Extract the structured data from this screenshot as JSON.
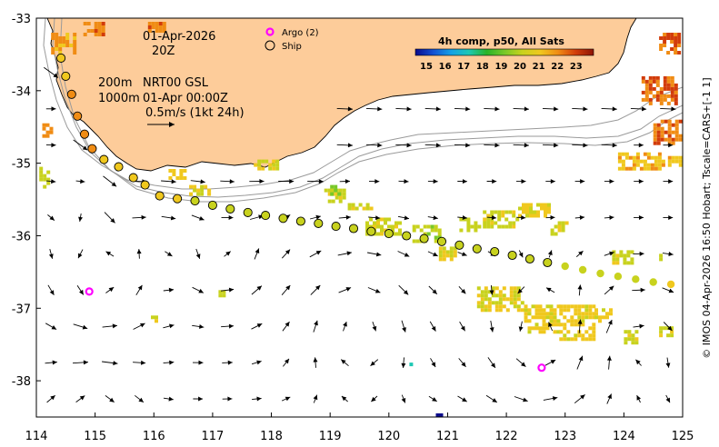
{
  "annotations": {
    "date": "01-Apr-2026",
    "hour": "20Z",
    "depth_a": "200m",
    "depth_b": "1000m",
    "product": "NRT00 GSL",
    "valid_time": "01-Apr 00:00Z",
    "scale_label": "0.5m/s (1kt 24h)"
  },
  "legend": {
    "argo_label": "Argo (2)",
    "ship_label": "Ship"
  },
  "colorbar": {
    "title": "4h comp, p50, All Sats",
    "ticks": [
      "15",
      "16",
      "17",
      "18",
      "19",
      "20",
      "21",
      "22",
      "23"
    ],
    "colors": [
      "#0a0a8c",
      "#1450d2",
      "#14a0e6",
      "#1ec8b4",
      "#28b428",
      "#78c828",
      "#c8d21e",
      "#f0c81e",
      "#f08c14",
      "#d23c0a",
      "#8c1405"
    ]
  },
  "axes": {
    "x_ticks": [
      "114",
      "115",
      "116",
      "117",
      "118",
      "119",
      "120",
      "121",
      "122",
      "123",
      "124",
      "125"
    ],
    "y_ticks": [
      "-33",
      "-34",
      "-35",
      "-36",
      "-37",
      "-38"
    ]
  },
  "credit": "© IMOS 04-Apr-2026 16:50 Hobart; Tscale=CARS+[-1 1]",
  "colors": {
    "land": "#fdcc9a",
    "coast": "#000000",
    "isobath": "#9a9a9a",
    "argo": "#ff00ff",
    "arrow": "#000000",
    "frame": "#000000"
  },
  "map_data": {
    "lon_range": [
      114,
      125
    ],
    "lat_range": [
      -38.5,
      -33
    ],
    "ship_track": [
      [
        114.42,
        -33.55,
        20.8
      ],
      [
        114.5,
        -33.8,
        20.9
      ],
      [
        114.6,
        -34.05,
        21.1
      ],
      [
        114.7,
        -34.35,
        21.2
      ],
      [
        114.82,
        -34.6,
        21.3
      ],
      [
        114.95,
        -34.8,
        21.2
      ],
      [
        115.15,
        -34.95,
        21.0
      ],
      [
        115.4,
        -35.05,
        20.9
      ],
      [
        115.65,
        -35.2,
        20.8
      ],
      [
        115.85,
        -35.3,
        20.7
      ],
      [
        116.1,
        -35.45,
        20.5
      ],
      [
        116.4,
        -35.49,
        20.3
      ],
      [
        116.7,
        -35.52,
        20.2
      ],
      [
        117.0,
        -35.58,
        20.1
      ],
      [
        117.3,
        -35.63,
        20.0
      ],
      [
        117.6,
        -35.68,
        19.9
      ],
      [
        117.9,
        -35.72,
        19.9
      ],
      [
        118.2,
        -35.76,
        19.8
      ],
      [
        118.5,
        -35.8,
        19.8
      ],
      [
        118.8,
        -35.83,
        19.7
      ],
      [
        119.1,
        -35.87,
        19.7
      ],
      [
        119.4,
        -35.9,
        19.6
      ],
      [
        119.7,
        -35.94,
        19.6
      ],
      [
        120.0,
        -35.97,
        19.6
      ],
      [
        120.3,
        -36.0,
        19.5
      ],
      [
        120.6,
        -36.04,
        19.5
      ],
      [
        120.9,
        -36.08,
        19.5
      ],
      [
        121.2,
        -36.13,
        19.6
      ],
      [
        121.5,
        -36.18,
        19.6
      ],
      [
        121.8,
        -36.22,
        19.7
      ],
      [
        122.1,
        -36.27,
        19.8
      ],
      [
        122.4,
        -36.32,
        19.8
      ],
      [
        122.7,
        -36.37,
        19.9
      ]
    ],
    "ship_track_east": [
      [
        123.0,
        -36.42,
        19.9
      ],
      [
        123.3,
        -36.47,
        20.0
      ],
      [
        123.6,
        -36.52,
        20.0
      ],
      [
        123.9,
        -36.56,
        20.1
      ],
      [
        124.2,
        -36.6,
        20.1
      ],
      [
        124.5,
        -36.64,
        20.2
      ],
      [
        124.8,
        -36.67,
        20.3
      ]
    ],
    "argo_floats": [
      [
        114.9,
        -36.77
      ],
      [
        122.6,
        -37.82
      ]
    ],
    "sst_patches": [
      [
        114.05,
        -35.05,
        0.14,
        0.3,
        19.8
      ],
      [
        114.1,
        -34.45,
        0.15,
        0.2,
        21.8
      ],
      [
        114.25,
        -33.2,
        0.4,
        0.28,
        21.2
      ],
      [
        114.8,
        -33.05,
        0.35,
        0.2,
        21.9
      ],
      [
        115.9,
        -33.05,
        0.3,
        0.15,
        21.6
      ],
      [
        116.25,
        -35.08,
        0.3,
        0.12,
        20.6
      ],
      [
        116.6,
        -35.3,
        0.35,
        0.14,
        20.3
      ],
      [
        117.7,
        -34.95,
        0.4,
        0.14,
        20.2
      ],
      [
        118.9,
        -35.35,
        0.35,
        0.16,
        20.1
      ],
      [
        119.3,
        -35.55,
        0.4,
        0.1,
        19.9
      ],
      [
        119.6,
        -35.75,
        0.6,
        0.22,
        20.0
      ],
      [
        120.4,
        -35.85,
        0.45,
        0.25,
        19.7
      ],
      [
        120.85,
        -36.15,
        0.3,
        0.2,
        20.2
      ],
      [
        121.2,
        -35.75,
        0.35,
        0.18,
        19.8
      ],
      [
        121.6,
        -35.65,
        0.6,
        0.25,
        20.0
      ],
      [
        122.2,
        -35.55,
        0.5,
        0.2,
        20.4
      ],
      [
        122.75,
        -35.8,
        0.3,
        0.2,
        20.2
      ],
      [
        121.5,
        -36.7,
        0.8,
        0.35,
        20.2
      ],
      [
        122.3,
        -36.95,
        0.6,
        0.4,
        20.5
      ],
      [
        122.9,
        -36.95,
        0.6,
        0.5,
        20.6
      ],
      [
        123.5,
        -37.0,
        0.3,
        0.2,
        20.4
      ],
      [
        124.0,
        -37.3,
        0.2,
        0.18,
        20.1
      ],
      [
        124.6,
        -37.25,
        0.2,
        0.15,
        20.0
      ],
      [
        123.8,
        -36.2,
        0.35,
        0.2,
        19.9
      ],
      [
        123.9,
        -34.85,
        0.8,
        0.25,
        21.0
      ],
      [
        124.5,
        -34.4,
        0.6,
        0.35,
        21.7
      ],
      [
        124.3,
        -33.8,
        0.6,
        0.4,
        21.9
      ],
      [
        124.6,
        -33.2,
        0.35,
        0.3,
        22.0
      ],
      [
        124.75,
        -34.9,
        0.25,
        0.15,
        20.7
      ],
      [
        120.8,
        -38.4,
        0.08,
        0.06,
        15.2
      ],
      [
        120.35,
        -37.75,
        0.08,
        0.05,
        17.4
      ],
      [
        119.0,
        -35.3,
        0.15,
        0.12,
        19.2
      ],
      [
        115.95,
        -37.1,
        0.08,
        0.06,
        19.9
      ],
      [
        117.1,
        -36.75,
        0.08,
        0.06,
        19.7
      ],
      [
        124.6,
        -36.25,
        0.12,
        0.1,
        20.1
      ]
    ]
  }
}
